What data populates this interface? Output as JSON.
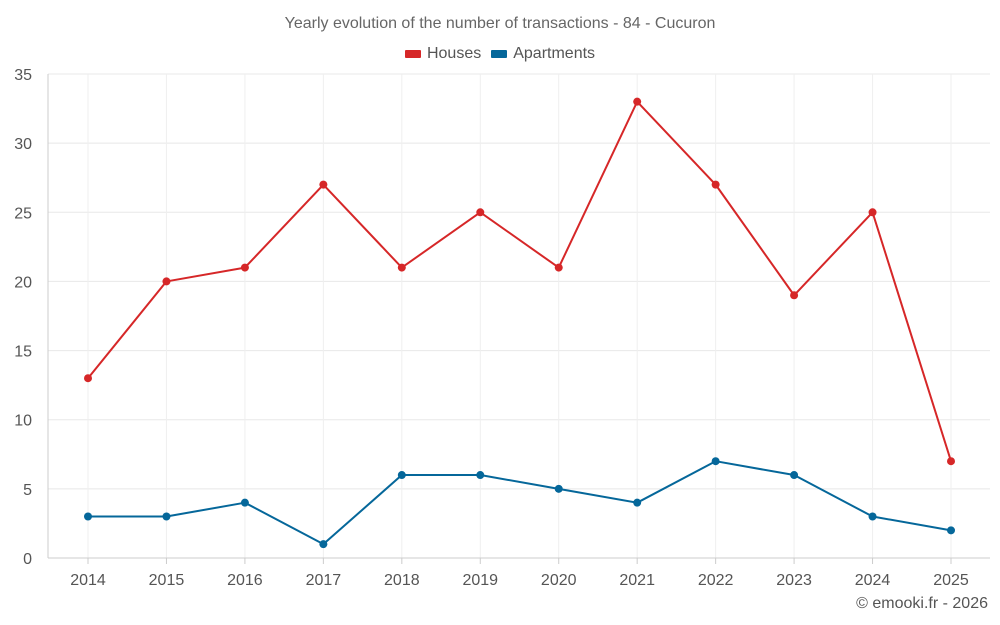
{
  "chart_data": {
    "type": "line",
    "title": "Yearly evolution of the number of transactions - 84 - Cucuron",
    "xlabel": "",
    "ylabel": "",
    "categories": [
      "2014",
      "2015",
      "2016",
      "2017",
      "2018",
      "2019",
      "2020",
      "2021",
      "2022",
      "2023",
      "2024",
      "2025"
    ],
    "ylim": [
      0,
      35
    ],
    "yticks": [
      0,
      5,
      10,
      15,
      20,
      25,
      30,
      35
    ],
    "grid": true,
    "legend_position": "top-center",
    "series": [
      {
        "name": "Houses",
        "color": "#d62728",
        "values": [
          13,
          20,
          21,
          27,
          21,
          25,
          21,
          33,
          27,
          19,
          25,
          7
        ]
      },
      {
        "name": "Apartments",
        "color": "#05679a",
        "values": [
          3,
          3,
          4,
          1,
          6,
          6,
          5,
          4,
          7,
          6,
          3,
          2
        ]
      }
    ]
  },
  "footer": {
    "credit": "© emooki.fr - 2026"
  }
}
